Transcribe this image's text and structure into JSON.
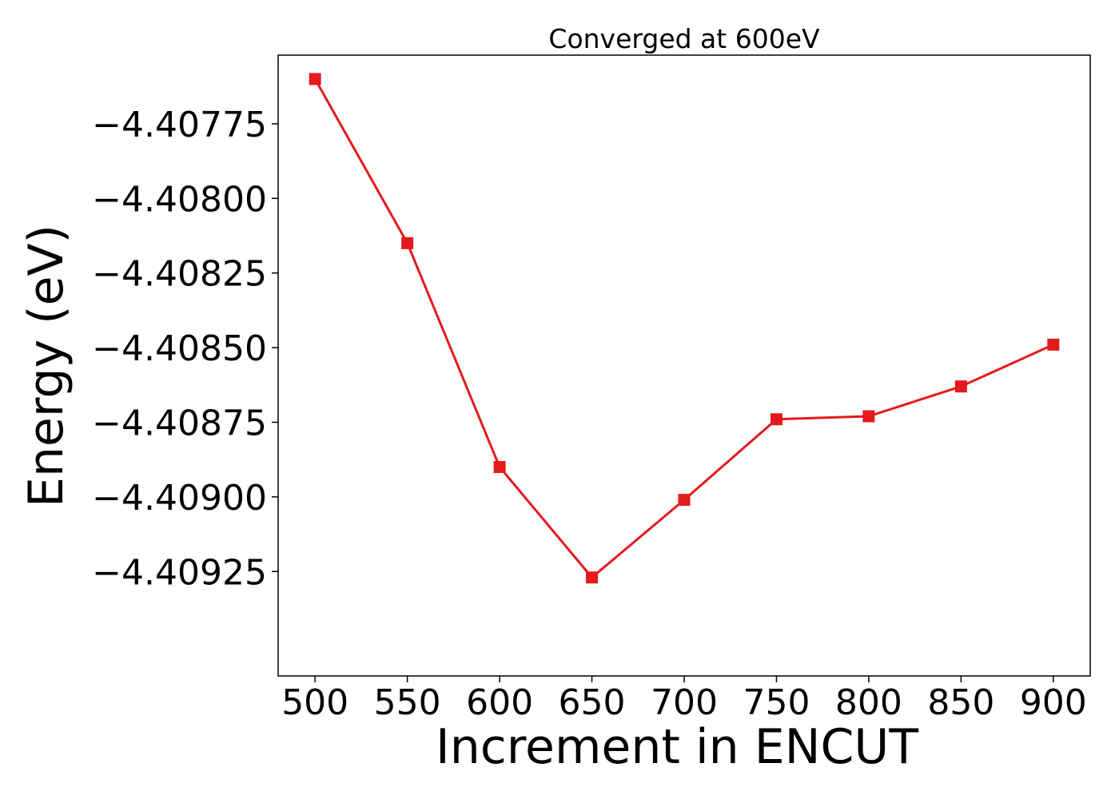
{
  "chart_data": {
    "type": "line",
    "title": "Converged at 600eV",
    "xlabel": "Increment in ENCUT",
    "ylabel": "Energy (eV)",
    "x": [
      500,
      550,
      600,
      650,
      700,
      750,
      800,
      850,
      900
    ],
    "series": [
      {
        "values": [
          -4.4076,
          -4.40815,
          -4.4089,
          -4.40927,
          -4.40901,
          -4.40874,
          -4.40873,
          -4.40863,
          -4.40849
        ],
        "color": "#e41a1c",
        "marker": "square"
      }
    ],
    "xticks": [
      500,
      550,
      600,
      650,
      700,
      750,
      800,
      850,
      900
    ],
    "yticks": [
      -4.40775,
      -4.408,
      -4.40825,
      -4.4085,
      -4.40875,
      -4.409,
      -4.40925
    ],
    "ytick_labels": [
      "−4.40775",
      "−4.40800",
      "−4.40825",
      "−4.40850",
      "−4.40875",
      "−4.40900",
      "−4.40925"
    ],
    "xlim": [
      480,
      920
    ],
    "ylim": [
      -4.4096,
      -4.40752
    ],
    "grid": false
  }
}
